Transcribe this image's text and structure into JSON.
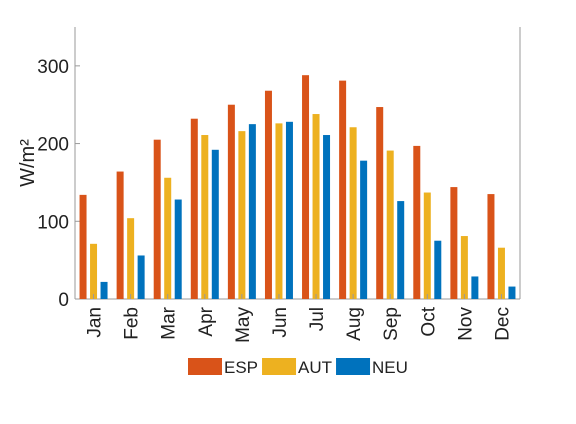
{
  "chart_data": {
    "type": "bar",
    "title": "",
    "xlabel": "",
    "ylabel": "W/m²",
    "ylim": [
      0,
      350
    ],
    "yticks": [
      0,
      100,
      200,
      300
    ],
    "grid": false,
    "legend_position": "bottom",
    "categories": [
      "Jan",
      "Feb",
      "Mar",
      "Apr",
      "May",
      "Jun",
      "Jul",
      "Aug",
      "Sep",
      "Oct",
      "Nov",
      "Dec"
    ],
    "series": [
      {
        "name": "ESP",
        "color": "#D95319",
        "values": [
          134,
          164,
          205,
          232,
          250,
          268,
          288,
          281,
          247,
          197,
          144,
          135
        ]
      },
      {
        "name": "AUT",
        "color": "#EDB120",
        "values": [
          71,
          104,
          156,
          211,
          216,
          226,
          238,
          221,
          191,
          137,
          81,
          66
        ]
      },
      {
        "name": "NEU",
        "color": "#0072BD",
        "values": [
          22,
          56,
          128,
          192,
          225,
          228,
          211,
          178,
          126,
          75,
          29,
          16
        ]
      }
    ]
  }
}
